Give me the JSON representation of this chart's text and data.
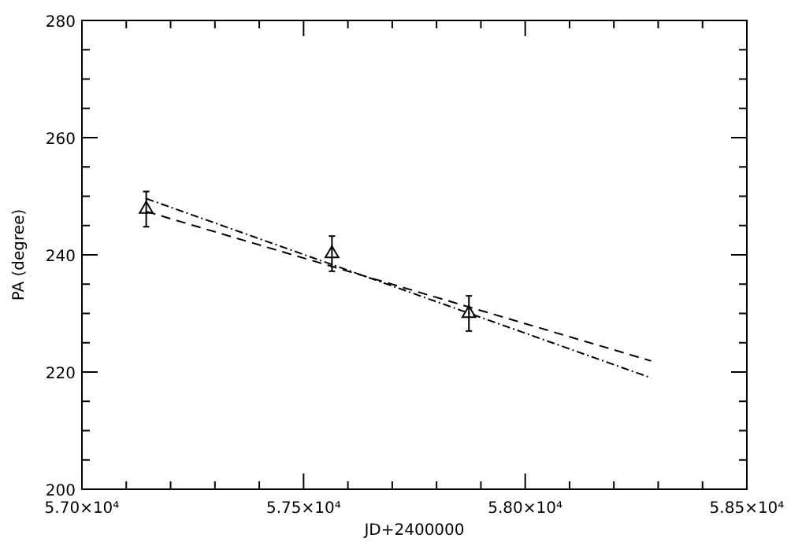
{
  "chart_data": {
    "type": "scatter",
    "xlabel": "JD+2400000",
    "ylabel": "PA (degree)",
    "xlim": [
      57000,
      58500
    ],
    "ylim": [
      200,
      280
    ],
    "xticks": [
      {
        "value": 57000,
        "label": "5.70×10⁴"
      },
      {
        "value": 57100,
        "label": null
      },
      {
        "value": 57200,
        "label": null
      },
      {
        "value": 57300,
        "label": null
      },
      {
        "value": 57400,
        "label": null
      },
      {
        "value": 57500,
        "label": "5.75×10⁴"
      },
      {
        "value": 57600,
        "label": null
      },
      {
        "value": 57700,
        "label": null
      },
      {
        "value": 57800,
        "label": null
      },
      {
        "value": 57900,
        "label": null
      },
      {
        "value": 58000,
        "label": "5.80×10⁴"
      },
      {
        "value": 58100,
        "label": null
      },
      {
        "value": 58200,
        "label": null
      },
      {
        "value": 58300,
        "label": null
      },
      {
        "value": 58400,
        "label": null
      },
      {
        "value": 58500,
        "label": "5.85×10⁴"
      }
    ],
    "yticks": [
      200,
      {
        "value": 205,
        "label": null
      },
      {
        "value": 210,
        "label": null
      },
      {
        "value": 215,
        "label": null
      },
      220,
      {
        "value": 225,
        "label": null
      },
      {
        "value": 230,
        "label": null
      },
      {
        "value": 235,
        "label": null
      },
      240,
      {
        "value": 245,
        "label": null
      },
      {
        "value": 250,
        "label": null
      },
      {
        "value": 255,
        "label": null
      },
      260,
      {
        "value": 265,
        "label": null
      },
      {
        "value": 270,
        "label": null
      },
      {
        "value": 275,
        "label": null
      },
      280
    ],
    "grid": false,
    "series": [
      {
        "marker": "triangle",
        "color": "#000000",
        "x": [
          57145,
          57564,
          57873
        ],
        "values": [
          247.8,
          240.2,
          230.0
        ],
        "errors": [
          3,
          3,
          3
        ]
      },
      {
        "type": "line",
        "line_style": "dashed",
        "color": "#000000",
        "x": [
          57145,
          58284
        ],
        "values": [
          247.4,
          221.9
        ]
      },
      {
        "type": "line",
        "line_style": "dotted",
        "color": "#000000",
        "x": [
          57145,
          58284
        ],
        "values": [
          249.6,
          219.0
        ]
      }
    ]
  }
}
